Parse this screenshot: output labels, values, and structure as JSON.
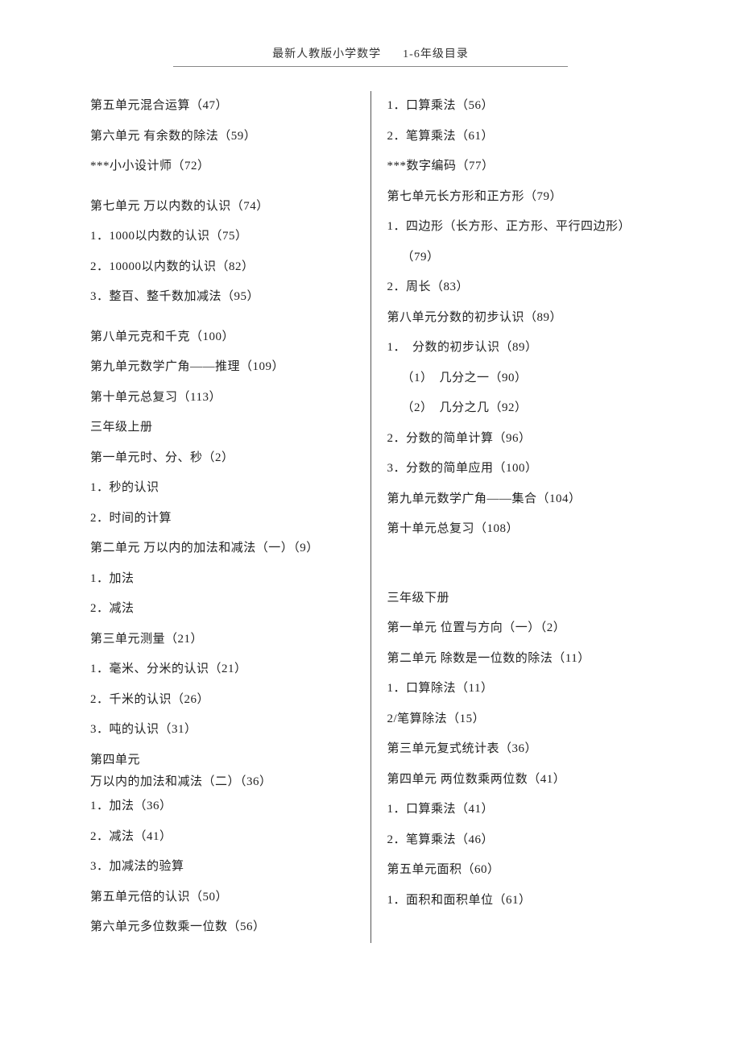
{
  "header": {
    "title_left": "最新人教版小学数学",
    "title_right": "1-6年级目录"
  },
  "columns": {
    "left": [
      {
        "text": "第五单元混合运算（47）"
      },
      {
        "text": "第六单元 有余数的除法（59）"
      },
      {
        "text": "***小小设计师（72）"
      },
      {
        "gap": true
      },
      {
        "text": "第七单元 万以内数的认识（74）"
      },
      {
        "text": "1．1000以内数的认识（75）"
      },
      {
        "text": "2．10000以内数的认识（82）"
      },
      {
        "text": "3．整百、整千数加减法（95）"
      },
      {
        "gap": true
      },
      {
        "text": "第八单元克和千克（100）"
      },
      {
        "text": "第九单元数学广角——推理（109）"
      },
      {
        "text": "第十单元总复习（113）"
      },
      {
        "text": "三年级上册"
      },
      {
        "text": "第一单元时、分、秒（2）"
      },
      {
        "text": "1．秒的认识"
      },
      {
        "text": "2．时间的计算"
      },
      {
        "text": "第二单元 万以内的加法和减法（一）（9）"
      },
      {
        "text": "1．加法"
      },
      {
        "text": "2．减法"
      },
      {
        "text": "第三单元测量（21）"
      },
      {
        "text": "1．毫米、分米的认识（21）"
      },
      {
        "text": "2．千米的认识（26）"
      },
      {
        "text": "3．吨的认识（31）"
      },
      {
        "text": "第四单元"
      },
      {
        "text": "万以内的加法和减法（二）（36）",
        "tight": true
      },
      {
        "text": "1．加法（36）"
      },
      {
        "text": "2．减法（41）"
      },
      {
        "text": "3．加减法的验算"
      },
      {
        "text": "第五单元倍的认识（50）"
      },
      {
        "text": "第六单元多位数乘一位数（56）"
      }
    ],
    "right": [
      {
        "text": "1．口算乘法（56）"
      },
      {
        "text": "2．笔算乘法（61）"
      },
      {
        "text": "***数字编码（77）"
      },
      {
        "text": "第七单元长方形和正方形（79）"
      },
      {
        "text": "1．四边形（长方形、正方形、平行四边形）"
      },
      {
        "text": "（79）",
        "indent": 1
      },
      {
        "text": "2．周长（83）"
      },
      {
        "text": "第八单元分数的初步认识（89）"
      },
      {
        "text": "1．　分数的初步认识（89）"
      },
      {
        "text": "（1）　几分之一（90）",
        "indent": 1
      },
      {
        "text": "（2）　几分之几（92）",
        "indent": 1
      },
      {
        "text": "2．分数的简单计算（96）"
      },
      {
        "text": "3．分数的简单应用（100）"
      },
      {
        "text": "第九单元数学广角——集合（104）"
      },
      {
        "text": "第十单元总复习（108）"
      },
      {
        "gap_lg": true
      },
      {
        "text": "三年级下册"
      },
      {
        "text": "第一单元 位置与方向（一）（2）"
      },
      {
        "text": "第二单元 除数是一位数的除法（11）"
      },
      {
        "text": "1．口算除法（11）"
      },
      {
        "text": "2/笔算除法（15）"
      },
      {
        "text": "第三单元复式统计表（36）"
      },
      {
        "text": "第四单元 两位数乘两位数（41）"
      },
      {
        "text": "1．口算乘法（41）"
      },
      {
        "text": "2．笔算乘法（46）"
      },
      {
        "text": "第五单元面积（60）"
      },
      {
        "text": "1．面积和面积单位（61）"
      }
    ]
  }
}
